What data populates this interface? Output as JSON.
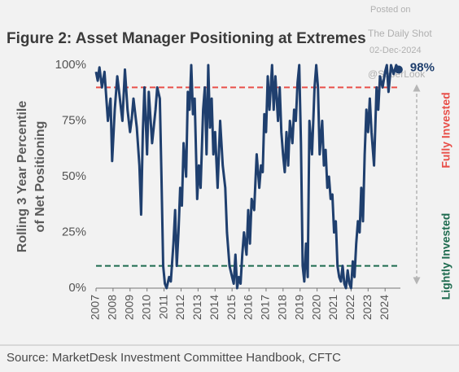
{
  "chart_data": {
    "type": "line",
    "title": "Figure 2: Asset Manager Positioning at Extremes",
    "ylabel": [
      "Rolling 3 Year Percentile",
      "of Net Positioning"
    ],
    "watermark": [
      "Posted on",
      "The Daily Shot",
      "02-Dec-2024",
      "@SoberLook"
    ],
    "source": "Source: MarketDesk Investment Committee Handbook, CFTC",
    "upper_label": "Fully Invested",
    "lower_label": "Lightly Invested",
    "thresholds": [
      {
        "value": 90,
        "color": "#e8504a"
      },
      {
        "value": 10,
        "color": "#1e6b4f"
      }
    ],
    "annotations": [
      {
        "x": 2024.8,
        "y": 98,
        "label": "98%"
      }
    ],
    "xlim": [
      2007,
      2024.9
    ],
    "xticks": [
      2007,
      2008,
      2009,
      2010,
      2011,
      2012,
      2013,
      2014,
      2015,
      2016,
      2017,
      2018,
      2019,
      2020,
      2021,
      2022,
      2023,
      2024
    ],
    "ylim": [
      0,
      100
    ],
    "yticks": [
      {
        "value": 0,
        "label": "0%"
      },
      {
        "value": 25,
        "label": "25%"
      },
      {
        "value": 50,
        "label": "50%"
      },
      {
        "value": 75,
        "label": "75%"
      },
      {
        "value": 100,
        "label": "100%"
      }
    ],
    "x": [
      2007.0,
      2007.1,
      2007.2,
      2007.35,
      2007.5,
      2007.7,
      2007.85,
      2007.95,
      2008.1,
      2008.25,
      2008.4,
      2008.55,
      2008.7,
      2008.85,
      2009.0,
      2009.1,
      2009.2,
      2009.4,
      2009.55,
      2009.65,
      2009.75,
      2009.85,
      2010.0,
      2010.1,
      2010.3,
      2010.5,
      2010.6,
      2010.75,
      2010.85,
      2010.95,
      2011.05,
      2011.15,
      2011.3,
      2011.4,
      2011.55,
      2011.65,
      2011.75,
      2011.85,
      2011.95,
      2012.05,
      2012.15,
      2012.3,
      2012.4,
      2012.5,
      2012.6,
      2012.7,
      2012.8,
      2012.95,
      2013.05,
      2013.15,
      2013.3,
      2013.4,
      2013.5,
      2013.6,
      2013.7,
      2013.8,
      2013.9,
      2014.0,
      2014.15,
      2014.3,
      2014.45,
      2014.6,
      2014.7,
      2014.85,
      2015.0,
      2015.1,
      2015.2,
      2015.3,
      2015.4,
      2015.5,
      2015.6,
      2015.7,
      2015.85,
      2015.95,
      2016.05,
      2016.15,
      2016.3,
      2016.45,
      2016.6,
      2016.7,
      2016.8,
      2016.9,
      2017.0,
      2017.1,
      2017.2,
      2017.35,
      2017.45,
      2017.55,
      2017.7,
      2017.8,
      2017.9,
      2018.0,
      2018.1,
      2018.2,
      2018.3,
      2018.4,
      2018.55,
      2018.65,
      2018.75,
      2018.85,
      2018.95,
      2019.05,
      2019.15,
      2019.25,
      2019.35,
      2019.45,
      2019.55,
      2019.7,
      2019.85,
      2019.95,
      2020.05,
      2020.15,
      2020.3,
      2020.4,
      2020.5,
      2020.6,
      2020.7,
      2020.8,
      2020.9,
      2021.0,
      2021.1,
      2021.2,
      2021.3,
      2021.4,
      2021.5,
      2021.6,
      2021.7,
      2021.8,
      2021.9,
      2022.0,
      2022.1,
      2022.2,
      2022.3,
      2022.4,
      2022.5,
      2022.6,
      2022.7,
      2022.8,
      2022.9,
      2023.0,
      2023.1,
      2023.2,
      2023.35,
      2023.5,
      2023.6,
      2023.7,
      2023.85,
      2024.0,
      2024.1,
      2024.2,
      2024.35,
      2024.5,
      2024.65,
      2024.8
    ],
    "series": [
      {
        "name": "Positioning",
        "color": "#1f3f6e",
        "values": [
          97,
          93,
          99,
          90,
          97,
          75,
          85,
          57,
          80,
          95,
          85,
          75,
          98,
          80,
          70,
          76,
          85,
          72,
          55,
          33,
          70,
          90,
          60,
          88,
          65,
          80,
          90,
          85,
          50,
          10,
          2,
          0,
          5,
          3,
          20,
          35,
          10,
          25,
          45,
          37,
          65,
          50,
          88,
          80,
          100,
          78,
          85,
          40,
          55,
          45,
          80,
          90,
          60,
          100,
          72,
          85,
          60,
          70,
          45,
          75,
          55,
          45,
          25,
          10,
          5,
          2,
          15,
          0,
          5,
          2,
          15,
          25,
          15,
          35,
          20,
          40,
          35,
          60,
          45,
          55,
          52,
          78,
          70,
          95,
          80,
          100,
          80,
          95,
          75,
          90,
          70,
          60,
          52,
          70,
          55,
          75,
          65,
          80,
          75,
          92,
          100,
          65,
          10,
          3,
          20,
          5,
          75,
          60,
          90,
          100,
          90,
          60,
          75,
          55,
          62,
          45,
          50,
          40,
          42,
          25,
          30,
          10,
          5,
          3,
          10,
          2,
          0,
          8,
          2,
          0,
          12,
          5,
          20,
          30,
          25,
          45,
          30,
          60,
          80,
          70,
          85,
          70,
          55,
          90,
          80,
          95,
          90,
          97,
          100,
          88,
          100,
          96,
          100,
          98
        ]
      }
    ]
  }
}
